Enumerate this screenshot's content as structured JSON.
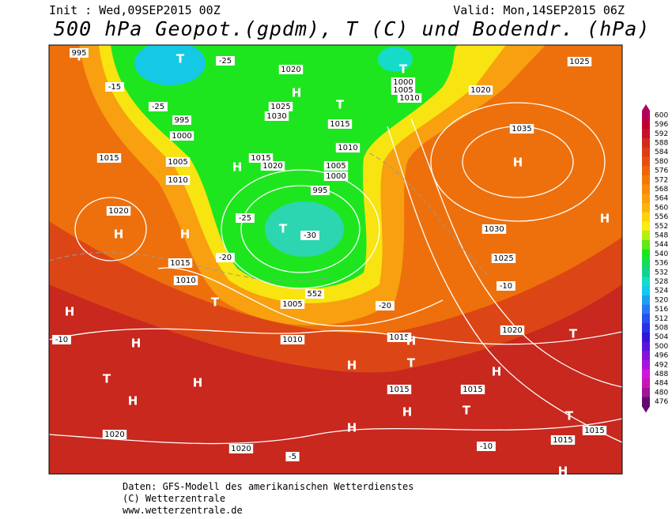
{
  "header": {
    "init": "Init : Wed,09SEP2015 00Z",
    "valid": "Valid: Mon,14SEP2015 06Z",
    "title": "500 hPa Geopot.(gpdm), T (C) und Bodendr. (hPa)"
  },
  "colorbar": {
    "labels": [
      "600",
      "596",
      "592",
      "588",
      "584",
      "580",
      "576",
      "572",
      "568",
      "564",
      "560",
      "556",
      "552",
      "548",
      "544",
      "540",
      "536",
      "532",
      "528",
      "524",
      "520",
      "516",
      "512",
      "508",
      "504",
      "500",
      "496",
      "492",
      "488",
      "484",
      "480",
      "476"
    ],
    "colors": [
      "#b3005a",
      "#c00033",
      "#c8102e",
      "#d22a1e",
      "#dc3c14",
      "#e6500f",
      "#ee640a",
      "#f27808",
      "#f68c08",
      "#faa00a",
      "#fcb40c",
      "#fcd20c",
      "#f8ec10",
      "#b4f00c",
      "#64e614",
      "#1ee61e",
      "#14dc5a",
      "#14d28c",
      "#14dcc8",
      "#14c8f0",
      "#1ea0f0",
      "#2878f0",
      "#2850f0",
      "#2832e6",
      "#3214dc",
      "#5a14dc",
      "#8214dc",
      "#aa14dc",
      "#d214dc",
      "#c814b4",
      "#a01496",
      "#640a6e"
    ]
  },
  "map": {
    "labels": [
      "T",
      "995",
      "T",
      "-25",
      "T",
      "1000",
      "1005",
      "1010",
      "1020",
      "H",
      "-15",
      "-25",
      "995",
      "1000",
      "1005",
      "1010",
      "1015",
      "1030",
      "1025",
      "T",
      "H",
      "1020",
      "1015",
      "1015",
      "1020",
      "H",
      "H",
      "H",
      "-20",
      "T",
      "-25",
      "-30",
      "995",
      "1000",
      "1005",
      "1010",
      "H",
      "T",
      "1005",
      "1010",
      "-20",
      "1015",
      "1010",
      "H",
      "T",
      "H",
      "1030",
      "1025",
      "1035",
      "H",
      "1025",
      "1020",
      "1015",
      "1020",
      "T",
      "H",
      "H",
      "H",
      "H",
      "T",
      "H",
      "T",
      "1015",
      "1015",
      "1020",
      "1020",
      "-10",
      "-10",
      "-5",
      "H",
      "1015",
      "1015",
      "H",
      "T",
      "H",
      "-10",
      "552"
    ]
  },
  "footer": {
    "lines": [
      "Daten: GFS-Modell des amerikanischen Wetterdienstes",
      "(C) Wetterzentrale",
      "www.wetterzentrale.de"
    ]
  }
}
